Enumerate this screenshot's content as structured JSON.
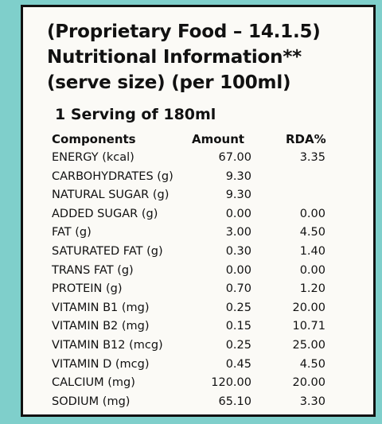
{
  "header": {
    "lines": [
      "(Proprietary Food – 14.1.5)",
      "Nutritional Information**",
      "(serve size) (per 100ml)"
    ],
    "serving": "1 Serving of 180ml"
  },
  "table": {
    "columns": [
      "Components",
      "Amount",
      "RDA%"
    ],
    "rows": [
      [
        "ENERGY (kcal)",
        "67.00",
        "3.35"
      ],
      [
        "CARBOHYDRATES (g)",
        "9.30",
        null
      ],
      [
        "NATURAL SUGAR (g)",
        "9.30",
        null
      ],
      [
        "ADDED SUGAR (g)",
        "0.00",
        "0.00"
      ],
      [
        "FAT (g)",
        "3.00",
        "4.50"
      ],
      [
        "SATURATED FAT (g)",
        "0.30",
        "1.40"
      ],
      [
        "TRANS FAT (g)",
        "0.00",
        "0.00"
      ],
      [
        "PROTEIN (g)",
        "0.70",
        "1.20"
      ],
      [
        "VITAMIN B1 (mg)",
        "0.25",
        "20.00"
      ],
      [
        "VITAMIN B2 (mg)",
        "0.15",
        "10.71"
      ],
      [
        "VITAMIN B12 (mcg)",
        "0.25",
        "25.00"
      ],
      [
        "VITAMIN D (mcg)",
        "0.45",
        "4.50"
      ],
      [
        "CALCIUM (mg)",
        "120.00",
        "20.00"
      ],
      [
        "SODIUM (mg)",
        "65.10",
        "3.30"
      ]
    ]
  }
}
